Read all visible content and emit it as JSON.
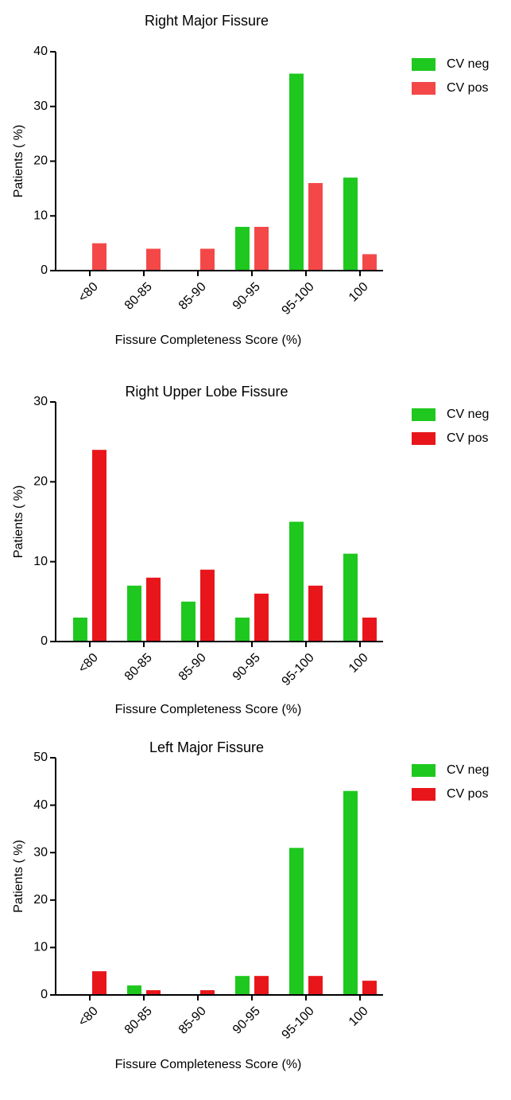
{
  "chart_data": [
    {
      "type": "bar",
      "title": "Right Major Fissure",
      "x_label": "Fissure Completeness Score (%)",
      "y_label": "Patients ( %)",
      "categories": [
        "<80",
        "80-85",
        "85-90",
        "90-95",
        "95-100",
        "100"
      ],
      "series": [
        {
          "name": "CV neg",
          "color": "#1ec81e",
          "values": [
            0,
            0,
            0,
            8,
            36,
            17
          ]
        },
        {
          "name": "CV pos",
          "color": "#f44848",
          "values": [
            5,
            4,
            4,
            8,
            16,
            3
          ]
        }
      ],
      "ylim": [
        0,
        40
      ],
      "yticks": [
        0,
        10,
        20,
        30,
        40
      ],
      "legend": "right"
    },
    {
      "type": "bar",
      "title": "Right Upper Lobe Fissure",
      "x_label": "Fissure Completeness Score (%)",
      "y_label": "Patients ( %)",
      "categories": [
        "<80",
        "80-85",
        "85-90",
        "90-95",
        "95-100",
        "100"
      ],
      "series": [
        {
          "name": "CV neg",
          "color": "#1ec81e",
          "values": [
            3,
            7,
            5,
            3,
            15,
            11
          ]
        },
        {
          "name": "CV pos",
          "color": "#e8161b",
          "values": [
            24,
            8,
            9,
            6,
            7,
            3
          ]
        }
      ],
      "ylim": [
        0,
        30
      ],
      "yticks": [
        0,
        10,
        20,
        30
      ],
      "legend": "right"
    },
    {
      "type": "bar",
      "title": "Left Major Fissure",
      "x_label": "Fissure Completeness Score (%)",
      "y_label": "Patients ( %)",
      "categories": [
        "<80",
        "80-85",
        "85-90",
        "90-95",
        "95-100",
        "100"
      ],
      "series": [
        {
          "name": "CV neg",
          "color": "#1ec81e",
          "values": [
            0,
            2,
            0,
            4,
            31,
            43
          ]
        },
        {
          "name": "CV pos",
          "color": "#e8161b",
          "values": [
            5,
            1,
            1,
            4,
            4,
            3
          ]
        }
      ],
      "ylim": [
        0,
        50
      ],
      "yticks": [
        0,
        10,
        20,
        30,
        40,
        50
      ],
      "legend": "right"
    }
  ]
}
